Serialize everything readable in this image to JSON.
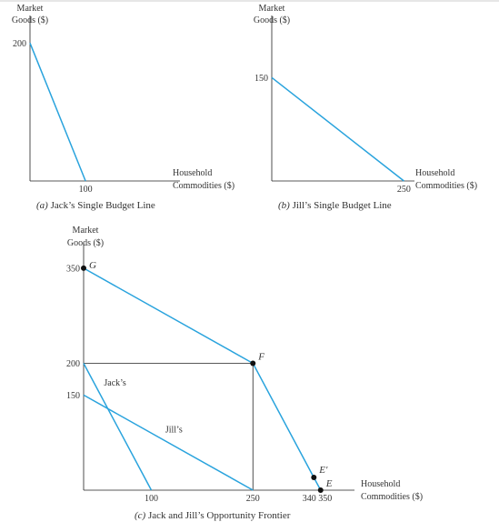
{
  "colors": {
    "line": "#29a3dd",
    "axis": "#222222",
    "point": "#111111",
    "text": "#333333"
  },
  "chart_data": [
    {
      "panel": "a",
      "type": "line",
      "ylabel": [
        "Market",
        "Goods ($)"
      ],
      "xlabel": [
        "Household",
        "Commodities ($)"
      ],
      "xlim": [
        0,
        270
      ],
      "ylim": [
        0,
        240
      ],
      "x_ticks": [
        100
      ],
      "y_ticks": [
        200
      ],
      "series": [
        {
          "points": [
            [
              0,
              200
            ],
            [
              100,
              0
            ]
          ]
        }
      ],
      "caption_letter": "(a)",
      "caption_text": "Jack’s Single Budget Line"
    },
    {
      "panel": "b",
      "type": "line",
      "ylabel": [
        "Market",
        "Goods ($)"
      ],
      "xlabel": [
        "Household",
        "Commodities ($)"
      ],
      "xlim": [
        0,
        270
      ],
      "ylim": [
        0,
        240
      ],
      "x_ticks": [
        250
      ],
      "y_ticks": [
        150
      ],
      "series": [
        {
          "points": [
            [
              0,
              150
            ],
            [
              250,
              0
            ]
          ]
        }
      ],
      "caption_letter": "(b)",
      "caption_text": "Jill’s Single Budget Line"
    },
    {
      "panel": "c",
      "type": "line",
      "ylabel": [
        "Market",
        "Goods ($)"
      ],
      "xlabel": [
        "Household",
        "Commodities ($)"
      ],
      "xlim": [
        0,
        400
      ],
      "ylim": [
        0,
        390
      ],
      "x_ticks": [
        100,
        250
      ],
      "x_tick_pair": "340 350",
      "y_ticks": [
        350,
        200,
        150
      ],
      "series": [
        {
          "name": "Jack’s",
          "points": [
            [
              0,
              200
            ],
            [
              100,
              0
            ]
          ]
        },
        {
          "name": "Jill’s",
          "points": [
            [
              0,
              150
            ],
            [
              250,
              0
            ]
          ]
        },
        {
          "points": [
            [
              0,
              350
            ],
            [
              250,
              200
            ],
            [
              340,
              20
            ],
            [
              350,
              0
            ]
          ]
        }
      ],
      "guides": [
        [
          [
            0,
            200
          ],
          [
            250,
            200
          ]
        ],
        [
          [
            250,
            200
          ],
          [
            250,
            0
          ]
        ]
      ],
      "points": [
        {
          "label": "G",
          "x": 0,
          "y": 350
        },
        {
          "label": "F",
          "x": 250,
          "y": 200
        },
        {
          "label": "E′",
          "x": 340,
          "y": 20
        },
        {
          "label": "E",
          "x": 350,
          "y": 0
        }
      ],
      "caption_letter": "(c)",
      "caption_text": "Jack and Jill’s Opportunity Frontier"
    }
  ]
}
